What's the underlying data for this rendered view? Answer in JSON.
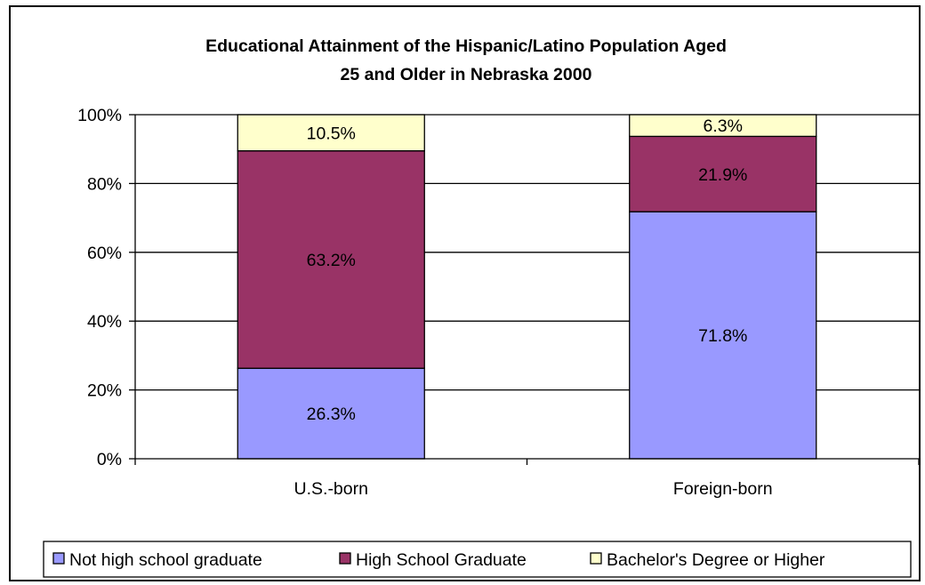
{
  "chart_data": {
    "type": "bar",
    "stacked": true,
    "percent": true,
    "title": "Educational Attainment of the Hispanic/Latino Population Aged 25 and Older in Nebraska 2000",
    "title_lines": [
      "Educational Attainment of the Hispanic/Latino Population Aged",
      "25 and Older in Nebraska 2000"
    ],
    "categories": [
      "U.S.-born",
      "Foreign-born"
    ],
    "series": [
      {
        "name": "Not high school graduate",
        "values": [
          26.3,
          71.8
        ],
        "labels": [
          "26.3%",
          "71.8%"
        ],
        "color": "#9999ff"
      },
      {
        "name": "High School Graduate",
        "values": [
          63.2,
          21.9
        ],
        "labels": [
          "63.2%",
          "21.9%"
        ],
        "color": "#993366"
      },
      {
        "name": "Bachelor's Degree or Higher",
        "values": [
          10.5,
          6.3
        ],
        "labels": [
          "10.5%",
          "6.3%"
        ],
        "color": "#ffffcc"
      }
    ],
    "ylim": [
      0,
      100
    ],
    "yticks": [
      "0%",
      "20%",
      "40%",
      "60%",
      "80%",
      "100%"
    ],
    "grid": true,
    "legend": "bottom"
  }
}
